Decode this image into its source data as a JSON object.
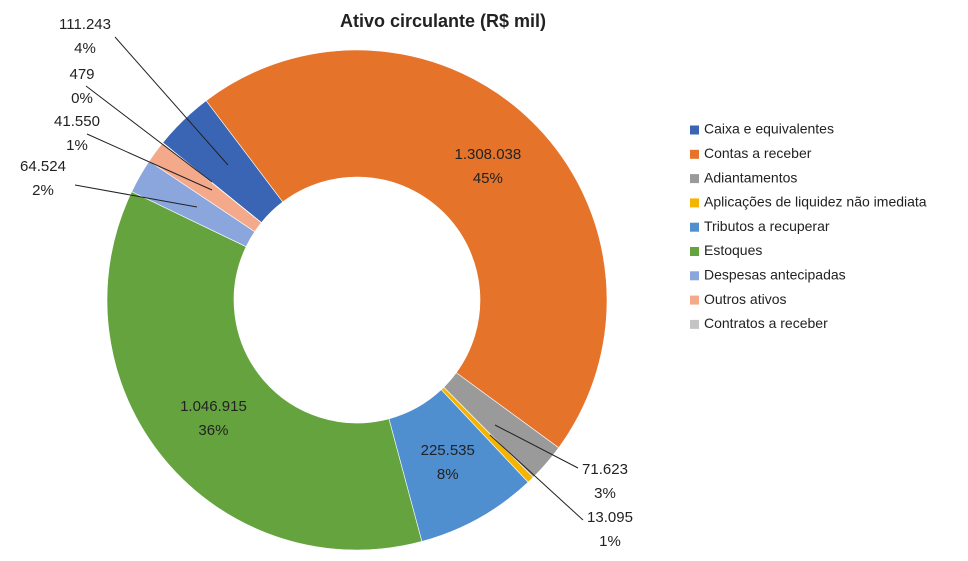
{
  "chart_data": {
    "type": "donut",
    "title": "Ativo circulante (R$ mil)",
    "categories": [
      "Caixa e equivalentes",
      "Contas a receber",
      "Adiantamentos",
      "Aplicações de liquidez não imediata",
      "Tributos a recuperar",
      "Estoques",
      "Despesas antecipadas",
      "Outros ativos",
      "Contratos a receber"
    ],
    "values": [
      111243,
      1308038,
      71623,
      13095,
      225535,
      1046915,
      64524,
      41550,
      479
    ],
    "value_labels": [
      "111.243",
      "1.308.038",
      "71.623",
      "13.095",
      "225.535",
      "1.046.915",
      "64.524",
      "41.550",
      "479"
    ],
    "percent_labels": [
      "4%",
      "45%",
      "3%",
      "1%",
      "8%",
      "36%",
      "2%",
      "1%",
      "0%"
    ],
    "colors": [
      "#3a64b4",
      "#e5732a",
      "#9a9a9a",
      "#f4b400",
      "#4f8fcf",
      "#65a33f",
      "#8aa6dc",
      "#f3a98a",
      "#c4c4c4"
    ],
    "legend": "right"
  }
}
